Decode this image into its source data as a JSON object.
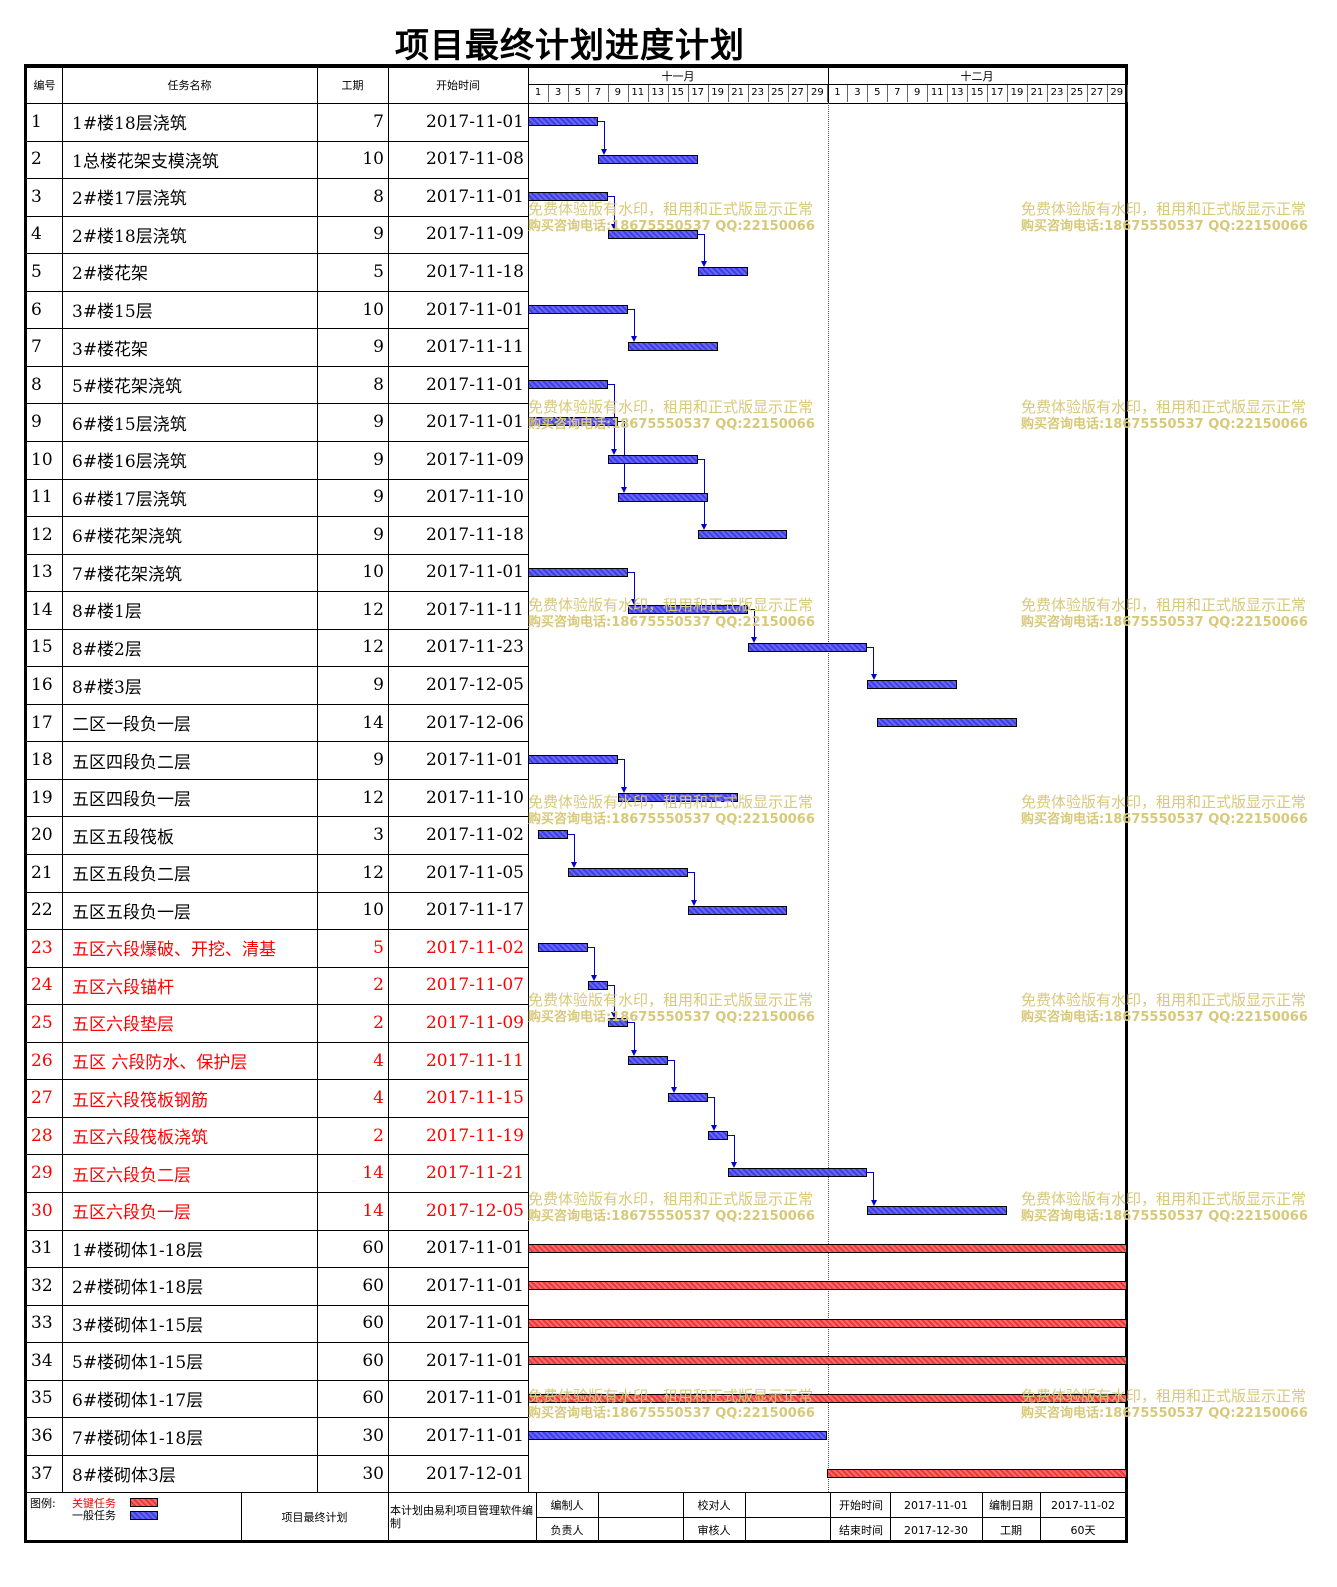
{
  "title": "项目最终计划进度计划",
  "headers": {
    "id": "编号",
    "name": "任务名称",
    "duration": "工期",
    "start": "开始时间"
  },
  "months": [
    "十一月",
    "十二月"
  ],
  "day_labels": [
    "1",
    "3",
    "5",
    "7",
    "9",
    "11",
    "13",
    "15",
    "17",
    "19",
    "21",
    "23",
    "25",
    "27",
    "29",
    "1",
    "3",
    "5",
    "7",
    "9",
    "11",
    "13",
    "15",
    "17",
    "19",
    "21",
    "23",
    "25",
    "27",
    "29"
  ],
  "tasks": [
    {
      "id": "1",
      "name": "1#楼18层浇筑",
      "duration": "7",
      "start": "2017-11-01",
      "s": 0,
      "d": 7,
      "critical": false,
      "next": 2
    },
    {
      "id": "2",
      "name": "1总楼花架支模浇筑",
      "duration": "10",
      "start": "2017-11-08",
      "s": 7,
      "d": 10,
      "critical": false
    },
    {
      "id": "3",
      "name": "2#楼17层浇筑",
      "duration": "8",
      "start": "2017-11-01",
      "s": 0,
      "d": 8,
      "critical": false,
      "next": 4
    },
    {
      "id": "4",
      "name": "2#楼18层浇筑",
      "duration": "9",
      "start": "2017-11-09",
      "s": 8,
      "d": 9,
      "critical": false,
      "next": 5
    },
    {
      "id": "5",
      "name": "2#楼花架",
      "duration": "5",
      "start": "2017-11-18",
      "s": 17,
      "d": 5,
      "critical": false
    },
    {
      "id": "6",
      "name": "3#楼15层",
      "duration": "10",
      "start": "2017-11-01",
      "s": 0,
      "d": 10,
      "critical": false,
      "next": 7
    },
    {
      "id": "7",
      "name": "3#楼花架",
      "duration": "9",
      "start": "2017-11-11",
      "s": 10,
      "d": 9,
      "critical": false
    },
    {
      "id": "8",
      "name": "5#楼花架浇筑",
      "duration": "8",
      "start": "2017-11-01",
      "s": 0,
      "d": 8,
      "critical": false,
      "next": 10
    },
    {
      "id": "9",
      "name": "6#楼15层浇筑",
      "duration": "9",
      "start": "2017-11-01",
      "s": 0,
      "d": 9,
      "critical": false,
      "next": 11
    },
    {
      "id": "10",
      "name": "6#楼16层浇筑",
      "duration": "9",
      "start": "2017-11-09",
      "s": 8,
      "d": 9,
      "critical": false,
      "next": 12
    },
    {
      "id": "11",
      "name": "6#楼17层浇筑",
      "duration": "9",
      "start": "2017-11-10",
      "s": 9,
      "d": 9,
      "critical": false
    },
    {
      "id": "12",
      "name": "6#楼花架浇筑",
      "duration": "9",
      "start": "2017-11-18",
      "s": 17,
      "d": 9,
      "critical": false
    },
    {
      "id": "13",
      "name": "7#楼花架浇筑",
      "duration": "10",
      "start": "2017-11-01",
      "s": 0,
      "d": 10,
      "critical": false,
      "next": 14
    },
    {
      "id": "14",
      "name": "8#楼1层",
      "duration": "12",
      "start": "2017-11-11",
      "s": 10,
      "d": 12,
      "critical": false,
      "next": 15
    },
    {
      "id": "15",
      "name": "8#楼2层",
      "duration": "12",
      "start": "2017-11-23",
      "s": 22,
      "d": 12,
      "critical": false,
      "next": 16
    },
    {
      "id": "16",
      "name": "8#楼3层",
      "duration": "9",
      "start": "2017-12-05",
      "s": 34,
      "d": 9,
      "critical": false
    },
    {
      "id": "17",
      "name": "二区一段负一层",
      "duration": "14",
      "start": "2017-12-06",
      "s": 35,
      "d": 14,
      "critical": false
    },
    {
      "id": "18",
      "name": "五区四段负二层",
      "duration": "9",
      "start": "2017-11-01",
      "s": 0,
      "d": 9,
      "critical": false,
      "next": 19
    },
    {
      "id": "19",
      "name": "五区四段负一层",
      "duration": "12",
      "start": "2017-11-10",
      "s": 9,
      "d": 12,
      "critical": false
    },
    {
      "id": "20",
      "name": "五区五段筏板",
      "duration": "3",
      "start": "2017-11-02",
      "s": 1,
      "d": 3,
      "critical": false,
      "next": 21
    },
    {
      "id": "21",
      "name": "五区五段负二层",
      "duration": "12",
      "start": "2017-11-05",
      "s": 4,
      "d": 12,
      "critical": false,
      "next": 22
    },
    {
      "id": "22",
      "name": "五区五段负一层",
      "duration": "10",
      "start": "2017-11-17",
      "s": 16,
      "d": 10,
      "critical": false
    },
    {
      "id": "23",
      "name": "五区六段爆破、开挖、清基",
      "duration": "5",
      "start": "2017-11-02",
      "s": 1,
      "d": 5,
      "critical": true,
      "next": 24
    },
    {
      "id": "24",
      "name": "五区六段锚杆",
      "duration": "2",
      "start": "2017-11-07",
      "s": 6,
      "d": 2,
      "critical": true,
      "next": 25
    },
    {
      "id": "25",
      "name": "五区六段垫层",
      "duration": "2",
      "start": "2017-11-09",
      "s": 8,
      "d": 2,
      "critical": true,
      "next": 26
    },
    {
      "id": "26",
      "name": "五区 六段防水、保护层",
      "duration": "4",
      "start": "2017-11-11",
      "s": 10,
      "d": 4,
      "critical": true,
      "next": 27
    },
    {
      "id": "27",
      "name": "五区六段筏板钢筋",
      "duration": "4",
      "start": "2017-11-15",
      "s": 14,
      "d": 4,
      "critical": true,
      "next": 28
    },
    {
      "id": "28",
      "name": "五区六段筏板浇筑",
      "duration": "2",
      "start": "2017-11-19",
      "s": 18,
      "d": 2,
      "critical": true,
      "next": 29
    },
    {
      "id": "29",
      "name": "五区六段负二层",
      "duration": "14",
      "start": "2017-11-21",
      "s": 20,
      "d": 14,
      "critical": true,
      "next": 30
    },
    {
      "id": "30",
      "name": "五区六段负一层",
      "duration": "14",
      "start": "2017-12-05",
      "s": 34,
      "d": 14,
      "critical": true
    },
    {
      "id": "31",
      "name": "1#楼砌体1-18层",
      "duration": "60",
      "start": "2017-11-01",
      "s": 0,
      "d": 60,
      "critical": false,
      "bar": "critical"
    },
    {
      "id": "32",
      "name": "2#楼砌体1-18层",
      "duration": "60",
      "start": "2017-11-01",
      "s": 0,
      "d": 60,
      "critical": false,
      "bar": "critical"
    },
    {
      "id": "33",
      "name": "3#楼砌体1-15层",
      "duration": "60",
      "start": "2017-11-01",
      "s": 0,
      "d": 60,
      "critical": false,
      "bar": "critical"
    },
    {
      "id": "34",
      "name": "5#楼砌体1-15层",
      "duration": "60",
      "start": "2017-11-01",
      "s": 0,
      "d": 60,
      "critical": false,
      "bar": "critical"
    },
    {
      "id": "35",
      "name": "6#楼砌体1-17层",
      "duration": "60",
      "start": "2017-11-01",
      "s": 0,
      "d": 60,
      "critical": false,
      "bar": "critical"
    },
    {
      "id": "36",
      "name": "7#楼砌体1-18层",
      "duration": "30",
      "start": "2017-11-01",
      "s": 0,
      "d": 30,
      "critical": false,
      "bar": "normal"
    },
    {
      "id": "37",
      "name": "8#楼砌体3层",
      "duration": "30",
      "start": "2017-12-01",
      "s": 30,
      "d": 30,
      "critical": false,
      "bar": "critical"
    }
  ],
  "watermark": {
    "line1": "免费体验版有水印，租用和正式版显示正常",
    "line2": "购买咨询电话:18675550537 QQ:22150066"
  },
  "footer": {
    "legend_label": "图例:",
    "legend_critical": "关键任务",
    "legend_normal": "一般任务",
    "plan_name": "项目最终计划",
    "software_note": "本计划由易利项目管理软件编制",
    "editor_label": "编制人",
    "checker_label": "校对人",
    "owner_label": "负责人",
    "reviewer_label": "审核人",
    "start_label": "开始时间",
    "start_value": "2017-11-01",
    "edit_date_label": "编制日期",
    "edit_date_value": "2017-11-02",
    "end_label": "结束时间",
    "end_value": "2017-12-30",
    "duration_label": "工期",
    "duration_value": "60天"
  },
  "colors": {
    "normal_bar": "#5050f0",
    "critical_bar": "#f04040",
    "critical_text": "#ff0000",
    "link": "#0000cc",
    "watermark": "#d8c97a"
  }
}
